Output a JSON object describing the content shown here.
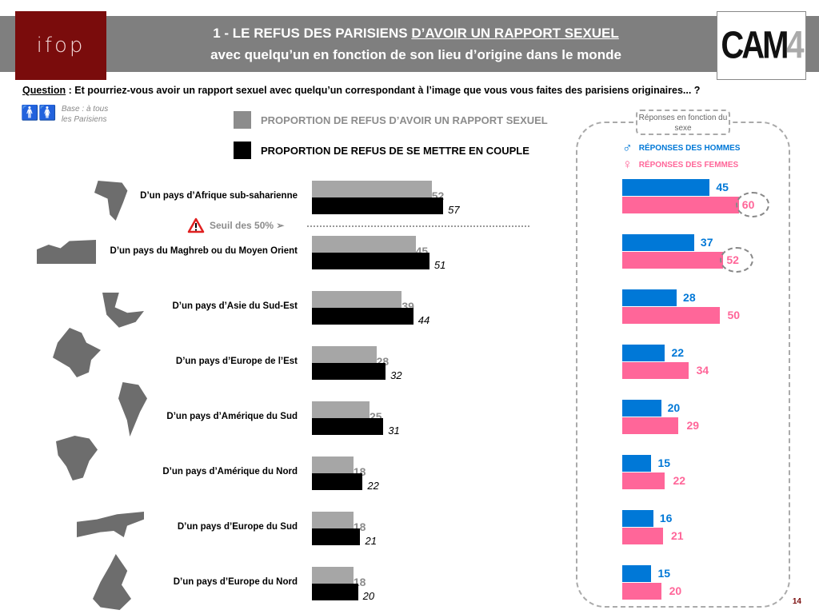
{
  "header": {
    "title_prefix": "1 - LE REFUS DES PARISIENS ",
    "title_underlined": "D’AVOIR UN RAPPORT SEXUEL",
    "subtitle": "avec quelqu’un en fonction de son lieu d’origine dans le monde",
    "left_logo": "ifop",
    "right_logo_main": "CAM",
    "right_logo_accent": "4"
  },
  "question": {
    "label": "Question",
    "text": " : Et pourriez-vous avoir un rapport sexuel avec quelqu’un correspondant à l’image que vous vous faites des parisiens originaires... ?"
  },
  "base": {
    "icon": "man-woman-icon",
    "text": "Base :  à tous les Parisiens"
  },
  "threshold": {
    "label": "Seuil des 50% ➢",
    "icon": "warning-triangle-icon",
    "value": 50
  },
  "panel": {
    "title": "Réponses en fonction du sexe"
  },
  "page_number": "14",
  "chart_data": [
    {
      "type": "bar",
      "orientation": "horizontal",
      "title": "1 - LE REFUS DES PARISIENS D’AVOIR UN RAPPORT SEXUEL avec quelqu’un en fonction de son lieu d’origine dans le monde",
      "categories": [
        "D’un pays d’Afrique sub-saharienne",
        "D’un pays du Maghreb ou du Moyen Orient",
        "D’un pays d’Asie du Sud-Est",
        "D’un pays d’Europe de l’Est",
        "D’un pays d’Amérique du Sud",
        "D’un pays d’Amérique du Nord",
        "D’un pays d’Europe du Sud",
        "D’un pays d’Europe du Nord"
      ],
      "series": [
        {
          "name": "PROPORTION DE REFUS D’AVOIR UN RAPPORT SEXUEL",
          "color": "#a6a6a6",
          "values": [
            52,
            45,
            39,
            28,
            25,
            18,
            18,
            18
          ]
        },
        {
          "name": "PROPORTION DE REFUS DE SE METTRE EN COUPLE",
          "color": "#000000",
          "values": [
            57,
            51,
            44,
            32,
            31,
            22,
            21,
            20
          ]
        }
      ],
      "annotations": [
        {
          "text": "Seuil des 50%",
          "value": 50,
          "after_category_index": 0
        }
      ],
      "legend": "top",
      "xlim": [
        0,
        100
      ],
      "unit": "%"
    },
    {
      "type": "bar",
      "orientation": "horizontal",
      "title": "Réponses en fonction du sexe",
      "categories": [
        "D’un pays d’Afrique sub-saharienne",
        "D’un pays du Maghreb ou du Moyen Orient",
        "D’un pays d’Asie du Sud-Est",
        "D’un pays d’Europe de l’Est",
        "D’un pays d’Amérique du Sud",
        "D’un pays d’Amérique du Nord",
        "D’un pays d’Europe du Sud",
        "D’un pays d’Europe du Nord"
      ],
      "series": [
        {
          "name": "RÉPONSES DES HOMMES",
          "symbol": "♂",
          "color": "#0078d7",
          "values": [
            45,
            37,
            28,
            22,
            20,
            15,
            16,
            15
          ]
        },
        {
          "name": "RÉPONSES DES FEMMES",
          "symbol": "♀",
          "color": "#ff6699",
          "values": [
            60,
            52,
            50,
            34,
            29,
            22,
            21,
            20
          ],
          "highlighted_indices": [
            0,
            1
          ]
        }
      ],
      "legend": "top",
      "unit": "%"
    }
  ]
}
